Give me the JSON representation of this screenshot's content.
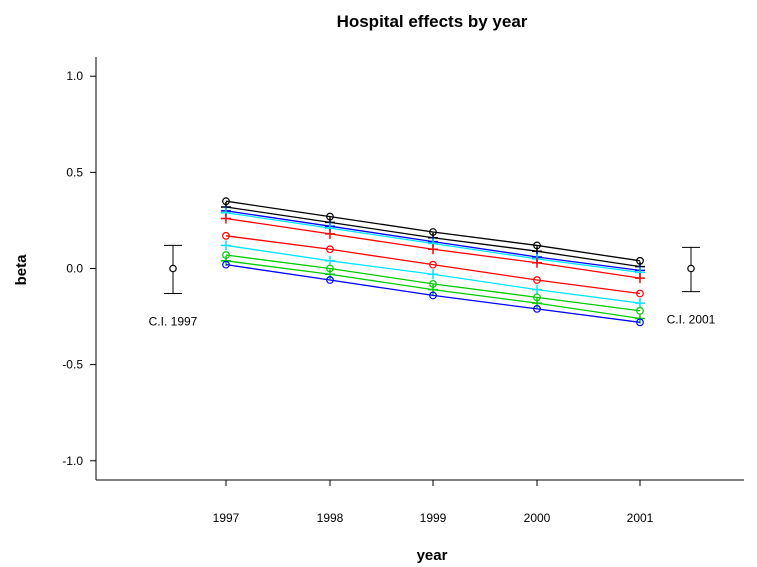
{
  "chart_data": {
    "type": "line",
    "title": "Hospital effects by year",
    "xlabel": "year",
    "ylabel": "beta",
    "categories": [
      "1997",
      "1998",
      "1999",
      "2000",
      "2001"
    ],
    "ylim": [
      -1.1,
      1.1
    ],
    "yticks": [
      "-1.0",
      "-0.5",
      "0.0",
      "0.5",
      "1.0"
    ],
    "grid": false,
    "series": [
      {
        "marker": "circle",
        "color": "#000000",
        "values": [
          0.35,
          0.27,
          0.19,
          0.12,
          0.04
        ]
      },
      {
        "marker": "plus",
        "color": "#000000",
        "values": [
          0.32,
          0.24,
          0.16,
          0.09,
          0.01
        ]
      },
      {
        "marker": "plus",
        "color": "#0000ff",
        "values": [
          0.3,
          0.22,
          0.14,
          0.06,
          -0.01
        ]
      },
      {
        "marker": "plus",
        "color": "#00e5ff",
        "values": [
          0.29,
          0.21,
          0.13,
          0.05,
          -0.02
        ]
      },
      {
        "marker": "plus",
        "color": "#ff0000",
        "values": [
          0.26,
          0.18,
          0.1,
          0.03,
          -0.05
        ]
      },
      {
        "marker": "circle",
        "color": "#ff0000",
        "values": [
          0.17,
          0.1,
          0.02,
          -0.06,
          -0.13
        ]
      },
      {
        "marker": "plus",
        "color": "#00e5ff",
        "values": [
          0.12,
          0.04,
          -0.03,
          -0.11,
          -0.18
        ]
      },
      {
        "marker": "circle",
        "color": "#00cc00",
        "values": [
          0.07,
          0.0,
          -0.08,
          -0.15,
          -0.22
        ]
      },
      {
        "marker": "plus",
        "color": "#00cc00",
        "values": [
          0.04,
          -0.03,
          -0.11,
          -0.18,
          -0.26
        ]
      },
      {
        "marker": "circle",
        "color": "#0000ff",
        "values": [
          0.02,
          -0.06,
          -0.14,
          -0.21,
          -0.28
        ]
      }
    ],
    "confidence_intervals": [
      {
        "label": "C.I. 1997",
        "center": 0.0,
        "low": -0.13,
        "high": 0.12
      },
      {
        "label": "C.I. 2001",
        "center": 0.0,
        "low": -0.12,
        "high": 0.11
      }
    ]
  }
}
